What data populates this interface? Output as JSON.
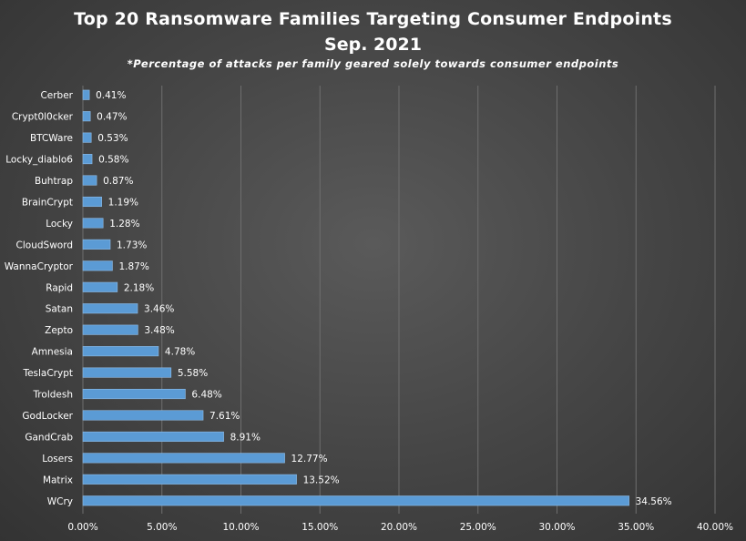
{
  "chart_data": {
    "type": "bar",
    "orientation": "horizontal",
    "title": "Top 20 Ransomware Families Targeting Consumer Endpoints",
    "subtitle": "Sep. 2021",
    "note": "*Percentage of attacks per family geared solely towards consumer endpoints",
    "xlabel": "",
    "ylabel": "",
    "xlim": [
      0,
      40
    ],
    "x_ticks": [
      "0.00%",
      "5.00%",
      "10.00%",
      "15.00%",
      "20.00%",
      "25.00%",
      "30.00%",
      "35.00%",
      "40.00%"
    ],
    "grid": true,
    "bar_color": "#5b9bd5",
    "categories": [
      "Cerber",
      "Crypt0l0cker",
      "BTCWare",
      "Locky_diablo6",
      "Buhtrap",
      "BrainCrypt",
      "Locky",
      "CloudSword",
      "WannaCryptor",
      "Rapid",
      "Satan",
      "Zepto",
      "Amnesia",
      "TeslaCrypt",
      "Troldesh",
      "GodLocker",
      "GandCrab",
      "Losers",
      "Matrix",
      "WCry"
    ],
    "values": [
      0.41,
      0.47,
      0.53,
      0.58,
      0.87,
      1.19,
      1.28,
      1.73,
      1.87,
      2.18,
      3.46,
      3.48,
      4.78,
      5.58,
      6.48,
      7.61,
      8.91,
      12.77,
      13.52,
      34.56
    ],
    "data_labels": [
      "0.41%",
      "0.47%",
      "0.53%",
      "0.58%",
      "0.87%",
      "1.19%",
      "1.28%",
      "1.73%",
      "1.87%",
      "2.18%",
      "3.46%",
      "3.48%",
      "4.78%",
      "5.58%",
      "6.48%",
      "7.61%",
      "8.91%",
      "12.77%",
      "13.52%",
      "34.56%"
    ]
  }
}
